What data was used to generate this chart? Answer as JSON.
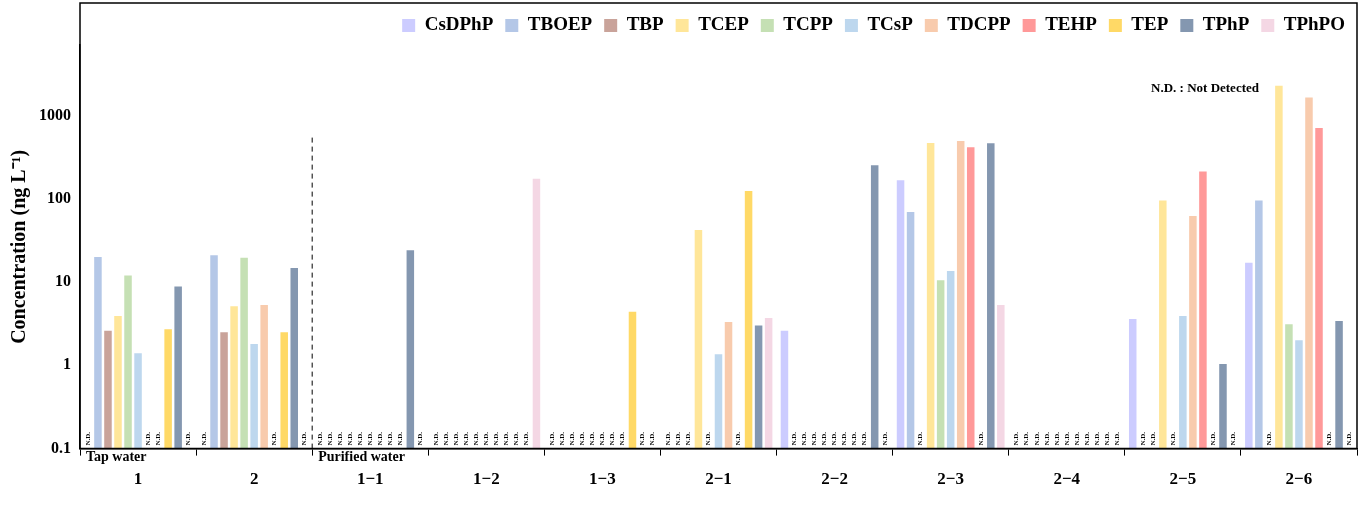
{
  "chart_data": {
    "type": "bar",
    "ylabel": "Concentration (ng L⁻¹)",
    "log": true,
    "ylim": [
      0.1,
      7000
    ],
    "yticks": [
      0.1,
      1,
      10,
      100,
      1000
    ],
    "grid": false,
    "legend": "top right",
    "categories": [
      "1",
      "2",
      "1−1",
      "1−2",
      "1−3",
      "2−1",
      "2−2",
      "2−3",
      "2−4",
      "2−5",
      "2−6"
    ],
    "series": [
      {
        "name": "CsDPhP",
        "color": "#ccccff",
        "values": [
          null,
          null,
          null,
          null,
          null,
          null,
          2.6,
          167,
          null,
          3.6,
          17
        ],
        "value_labels": [
          "N.D.",
          "N.D.",
          "N.D.",
          "N.D.",
          "N.D.",
          "N.D.",
          null,
          null,
          "N.D.",
          null,
          null
        ]
      },
      {
        "name": "TBOEP",
        "color": "#b4c7e7",
        "values": [
          20,
          21,
          null,
          null,
          null,
          null,
          null,
          69,
          null,
          null,
          95
        ],
        "value_labels": [
          null,
          null,
          "N.D.",
          "N.D.",
          "N.D.",
          "N.D.",
          "N.D.",
          null,
          "N.D.",
          "N.D.",
          null
        ]
      },
      {
        "name": "TBP",
        "color": "#c9a39a",
        "values": [
          2.6,
          2.5,
          null,
          null,
          null,
          null,
          null,
          null,
          null,
          null,
          null
        ],
        "value_labels": [
          null,
          null,
          "N.D.",
          "N.D.",
          "N.D.",
          "N.D.",
          "N.D.",
          "N.D.",
          "N.D.",
          "N.D.",
          "N.D."
        ]
      },
      {
        "name": "TCEP",
        "color": "#ffe699",
        "values": [
          3.9,
          5.1,
          null,
          null,
          null,
          42,
          null,
          466,
          null,
          95,
          2265
        ],
        "value_labels": [
          null,
          null,
          "N.D.",
          "N.D.",
          "N.D.",
          null,
          "N.D.",
          null,
          "N.D.",
          null,
          null
        ]
      },
      {
        "name": "TCPP",
        "color": "#c5e0b4",
        "values": [
          12,
          19.5,
          null,
          null,
          null,
          null,
          null,
          10.5,
          null,
          null,
          3.1
        ],
        "value_labels": [
          null,
          null,
          "N.D.",
          "N.D.",
          "N.D.",
          "N.D.",
          "N.D.",
          null,
          "N.D.",
          "N.D.",
          null
        ]
      },
      {
        "name": "TCsP",
        "color": "#bdd7ee",
        "values": [
          1.4,
          1.8,
          null,
          null,
          null,
          1.36,
          null,
          13.6,
          null,
          3.9,
          2.0
        ],
        "value_labels": [
          null,
          null,
          "N.D.",
          "N.D.",
          "N.D.",
          null,
          "N.D.",
          null,
          "N.D.",
          null,
          null
        ]
      },
      {
        "name": "TDCPP",
        "color": "#f8cbad",
        "values": [
          null,
          5.3,
          null,
          null,
          null,
          3.3,
          null,
          493,
          null,
          62,
          1637
        ],
        "value_labels": [
          "N.D.",
          null,
          "N.D.",
          "N.D.",
          "N.D.",
          null,
          "N.D.",
          null,
          "N.D.",
          null,
          null
        ]
      },
      {
        "name": "TEHP",
        "color": "#ff9999",
        "values": [
          null,
          null,
          null,
          null,
          null,
          null,
          null,
          414,
          null,
          212,
          705
        ],
        "value_labels": [
          "N.D.",
          "N.D.",
          "N.D.",
          "N.D.",
          "N.D.",
          "N.D.",
          "N.D.",
          null,
          "N.D.",
          null,
          null
        ]
      },
      {
        "name": "TEP",
        "color": "#ffd966",
        "values": [
          2.7,
          2.5,
          null,
          null,
          4.4,
          124,
          null,
          null,
          null,
          null,
          null
        ],
        "value_labels": [
          null,
          null,
          "N.D.",
          "N.D.",
          null,
          null,
          "N.D.",
          "N.D.",
          "N.D.",
          "N.D.",
          "N.D."
        ]
      },
      {
        "name": "TPhP",
        "color": "#8497b0",
        "values": [
          8.8,
          14.7,
          24,
          null,
          null,
          3.0,
          252,
          462,
          null,
          1.04,
          3.4
        ],
        "value_labels": [
          null,
          null,
          null,
          "N.D.",
          "N.D.",
          null,
          null,
          null,
          "N.D.",
          null,
          null
        ]
      },
      {
        "name": "TPhPO",
        "color": "#f4d7e4",
        "values": [
          null,
          null,
          null,
          174,
          null,
          3.7,
          null,
          5.3,
          null,
          null,
          null
        ],
        "value_labels": [
          "N.D.",
          "N.D.",
          "N.D.",
          null,
          "N.D.",
          null,
          "N.D.",
          null,
          "N.D.",
          "N.D.",
          "N.D."
        ]
      }
    ],
    "annotations": [
      "N.D. : Not Detected",
      "Tap water",
      "Purified water"
    ]
  }
}
